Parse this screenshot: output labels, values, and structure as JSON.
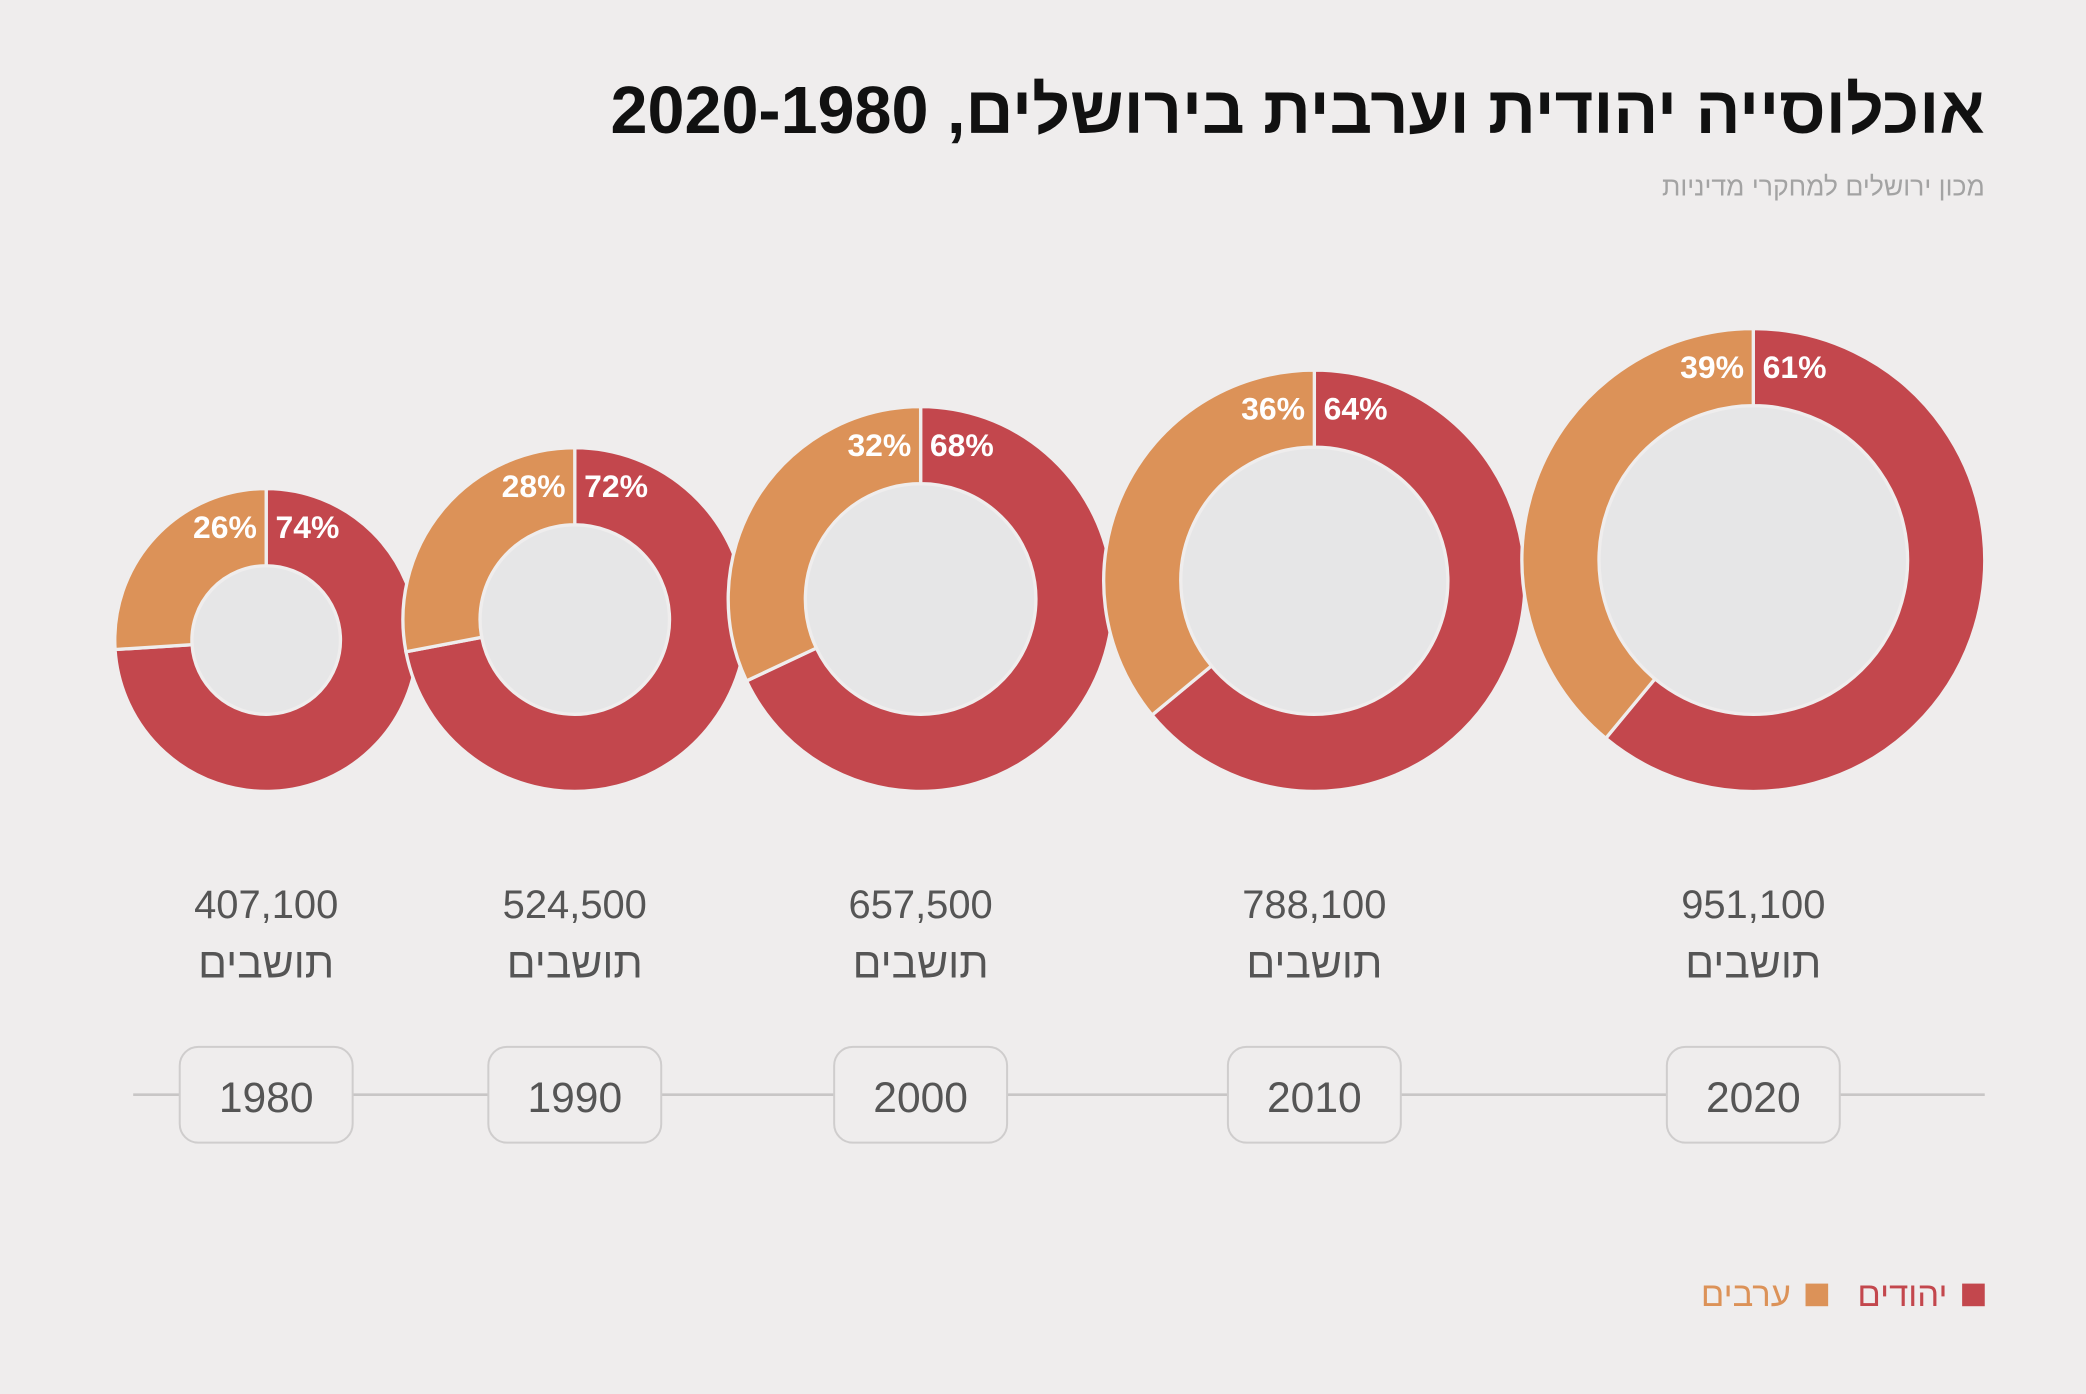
{
  "chart_data": {
    "type": "donut",
    "title": "אוכלוסייה יהודית וערבית בירושלים, 2020-1980",
    "subtitle": "מכון ירושלים למחקרי מדיניות",
    "categories": [
      "1980",
      "1990",
      "2000",
      "2010",
      "2020"
    ],
    "population": {
      "values": [
        407100,
        524500,
        657500,
        788100,
        951100
      ],
      "value_labels": [
        "407,100",
        "524,500",
        "657,500",
        "788,100",
        "951,100"
      ]
    },
    "population_unit": "תושבים",
    "series": [
      {
        "name": "יהודים",
        "color": "#c3474d",
        "values": [
          74,
          72,
          68,
          64,
          61
        ],
        "value_labels": [
          "74%",
          "72%",
          "68%",
          "64%",
          "61%"
        ]
      },
      {
        "name": "ערבים",
        "color": "#dc9258",
        "values": [
          26,
          28,
          32,
          36,
          39
        ],
        "value_labels": [
          "26%",
          "28%",
          "32%",
          "36%",
          "39%"
        ]
      }
    ]
  }
}
